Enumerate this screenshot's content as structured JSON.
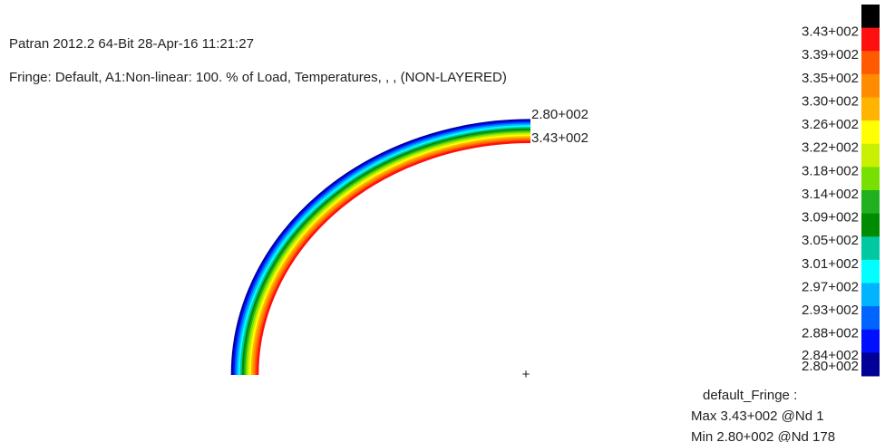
{
  "header": {
    "line1": "Patran 2012.2 64-Bit 28-Apr-16 11:21:27",
    "line2": "Fringe: Default, A1:Non-linear: 100. % of Load, Temperatures, , , (NON-LAYERED)"
  },
  "annotations": {
    "outer": "2.80+002",
    "inner": "3.43+002",
    "cross": "+"
  },
  "legend": {
    "labels": [
      "3.43+002",
      "3.39+002",
      "3.35+002",
      "3.30+002",
      "3.26+002",
      "3.22+002",
      "3.18+002",
      "3.14+002",
      "3.09+002",
      "3.05+002",
      "3.01+002",
      "2.97+002",
      "2.93+002",
      "2.88+002",
      "2.84+002",
      "2.80+002"
    ],
    "colors": [
      "#000000",
      "#ff1010",
      "#ff5a00",
      "#ff8c00",
      "#ffb400",
      "#ffff00",
      "#c8f000",
      "#78e000",
      "#20b020",
      "#008c00",
      "#00c8a0",
      "#00ffff",
      "#00b4ff",
      "#0064ff",
      "#0010ff",
      "#000096"
    ]
  },
  "footer": {
    "title": "default_Fringe :",
    "max": "Max 3.43+002 @Nd 1",
    "min": "Min 2.80+002 @Nd 178"
  }
}
